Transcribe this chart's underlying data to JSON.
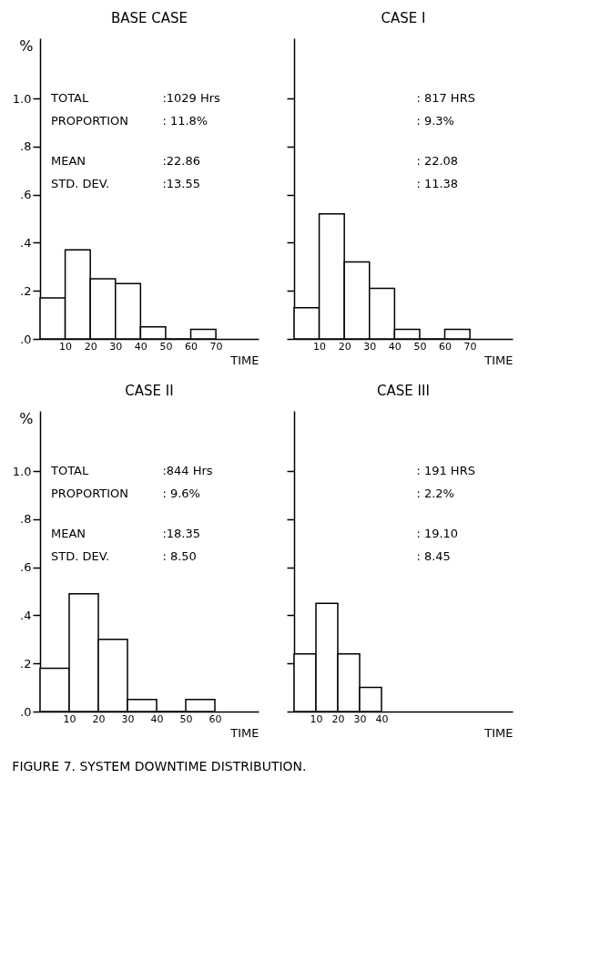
{
  "chart_data": [
    {
      "type": "histogram",
      "title": "BASE CASE",
      "xlabel": "TIME",
      "ylabel": "%",
      "bins": [
        0,
        10,
        20,
        30,
        40,
        50,
        60,
        70
      ],
      "values": [
        0.17,
        0.37,
        0.25,
        0.23,
        0.05,
        0,
        0.04
      ],
      "xlim": [
        0,
        87
      ],
      "xticks": [
        10,
        20,
        30,
        40,
        50,
        60,
        70
      ],
      "ylim": [
        0,
        1.25
      ],
      "yticks": [
        {
          "value": 0,
          "label": ".0"
        },
        {
          "value": 0.2,
          "label": ".2"
        },
        {
          "value": 0.4,
          "label": ".4"
        },
        {
          "value": 0.6,
          "label": ".6"
        },
        {
          "value": 0.8,
          "label": ".8"
        },
        {
          "value": 1.0,
          "label": "1.0"
        }
      ],
      "color": "#ffffff",
      "annotations": [
        "TOTAL :1029 Hrs",
        "PROPORTION : 11.8%",
        "MEAN :22.86",
        "STD. DEV. :13.55"
      ]
    },
    {
      "type": "histogram",
      "title": "CASE I",
      "xlabel": "TIME",
      "bins": [
        0,
        10,
        20,
        30,
        40,
        50,
        60,
        70
      ],
      "values": [
        0.13,
        0.52,
        0.32,
        0.21,
        0.04,
        0,
        0.04
      ],
      "xlim": [
        0,
        87
      ],
      "xticks": [
        10,
        20,
        30,
        40,
        50,
        60,
        70
      ],
      "ylim": [
        0,
        1.25
      ],
      "yticks": [
        0,
        0.2,
        0.4,
        0.6,
        0.8,
        1.0
      ],
      "tick_labels": "x",
      "color": "#ffffff",
      "annotations": [
        ": 817 HRS",
        ": 9.3%",
        ": 22.08",
        ": 11.38"
      ]
    },
    {
      "type": "histogram",
      "title": "CASE II",
      "xlabel": "TIME",
      "ylabel": "%",
      "bins": [
        0,
        10,
        20,
        30,
        40,
        50,
        60
      ],
      "values": [
        0.18,
        0.49,
        0.3,
        0.05,
        0,
        0.05
      ],
      "xlim": [
        0,
        75
      ],
      "xticks": [
        10,
        20,
        30,
        40,
        50,
        60
      ],
      "ylim": [
        0,
        1.25
      ],
      "yticks": [
        {
          "value": 0,
          "label": ".0"
        },
        {
          "value": 0.2,
          "label": ".2"
        },
        {
          "value": 0.4,
          "label": ".4"
        },
        {
          "value": 0.6,
          "label": ".6"
        },
        {
          "value": 0.8,
          "label": ".8"
        },
        {
          "value": 1.0,
          "label": "1.0"
        }
      ],
      "color": "#ffffff",
      "annotations": [
        "TOTAL :844 Hrs",
        "PROPORTION : 9.6%",
        "MEAN :18.35",
        "STD. DEV. : 8.50"
      ]
    },
    {
      "type": "histogram",
      "title": "CASE III",
      "xlabel": "TIME",
      "bins": [
        0,
        10,
        20,
        30,
        40
      ],
      "values": [
        0.24,
        0.45,
        0.24,
        0.1
      ],
      "xlim": [
        0,
        100
      ],
      "xticks": [
        10,
        20,
        30,
        40
      ],
      "ylim": [
        0,
        1.25
      ],
      "yticks": [
        0,
        0.2,
        0.4,
        0.6,
        0.8,
        1.0
      ],
      "tick_labels": "x",
      "color": "#ffffff",
      "annotations": [
        ": 191 HRS",
        ": 2.2%",
        ": 19.10",
        ": 8.45",
        "FIGURE 7. SYSTEM DOWNTIME DISTRIBUTION."
      ]
    }
  ]
}
